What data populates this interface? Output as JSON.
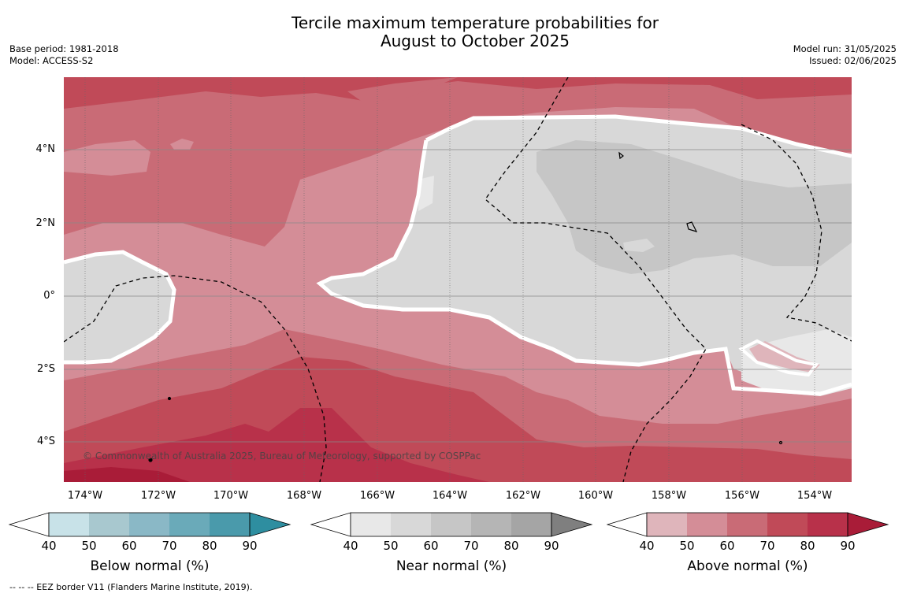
{
  "title_line1": "Tercile maximum temperature probabilities for",
  "title_line2": "August to October 2025",
  "meta_left": {
    "base_period": "Base period: 1981-2018",
    "model": "Model: ACCESS-S2"
  },
  "meta_right": {
    "model_run": "Model run: 31/05/2025",
    "issued": "Issued: 02/06/2025"
  },
  "map": {
    "lat_labels": [
      "4°N",
      "2°N",
      "0°",
      "2°S",
      "4°S"
    ],
    "lon_labels": [
      "174°W",
      "172°W",
      "170°W",
      "168°W",
      "166°W",
      "164°W",
      "162°W",
      "160°W",
      "158°W",
      "156°W",
      "154°W"
    ],
    "copyright": "© Commonwealth of Australia 2025, Bureau of Meteorology, supported by COSPPac",
    "colors": {
      "above_40_50": "#dfb5bb",
      "above_50_60": "#d48d97",
      "above_60_70": "#c96b76",
      "above_70_80": "#c04a58",
      "above_80_90": "#b8314a",
      "above_90": "#a91c38",
      "near_40_50": "#e8e8e8",
      "near_50_60": "#d8d8d8",
      "near_60_70": "#c6c6c6",
      "near_70_80": "#b5b5b5",
      "near_80_90": "#a5a5a5",
      "near_90": "#7f7f7f",
      "below_40_50": "#c8e2e8",
      "below_50_60": "#a8c8cf",
      "below_60_70": "#8ab8c6",
      "below_70_80": "#6aaab9",
      "below_80_90": "#4a9aab",
      "below_90": "#2e8ea0"
    }
  },
  "colorbars": [
    {
      "label": "Below normal (%)",
      "ticks": [
        "40",
        "50",
        "60",
        "70",
        "80",
        "90"
      ],
      "colors": [
        "#c8e2e8",
        "#a8c8cf",
        "#8ab8c6",
        "#6aaab9",
        "#4a9aab",
        "#2e8ea0"
      ]
    },
    {
      "label": "Near normal (%)",
      "ticks": [
        "40",
        "50",
        "60",
        "70",
        "80",
        "90"
      ],
      "colors": [
        "#e8e8e8",
        "#d8d8d8",
        "#c6c6c6",
        "#b5b5b5",
        "#a5a5a5",
        "#7f7f7f"
      ]
    },
    {
      "label": "Above normal (%)",
      "ticks": [
        "40",
        "50",
        "60",
        "70",
        "80",
        "90"
      ],
      "colors": [
        "#dfb5bb",
        "#d48d97",
        "#c96b76",
        "#c04a58",
        "#b8314a",
        "#a91c38"
      ]
    }
  ],
  "footnote": "--  --  -- EEZ border V11 (Flanders Marine Institute, 2019)."
}
